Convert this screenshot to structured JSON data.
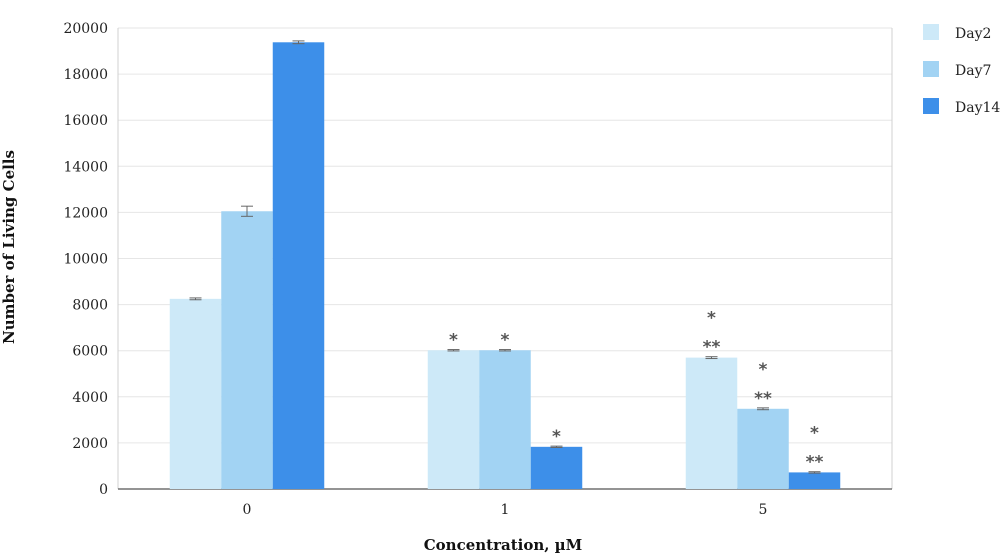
{
  "chart_data": {
    "type": "bar",
    "title": "",
    "xlabel": "Concentration, µM",
    "ylabel": "Number of Living Cells",
    "categories": [
      "0",
      "1",
      "5"
    ],
    "ylim": [
      0,
      20000
    ],
    "yticks": [
      0,
      2000,
      4000,
      6000,
      8000,
      10000,
      12000,
      14000,
      16000,
      18000,
      20000
    ],
    "grid": true,
    "legend_position": "right",
    "series": [
      {
        "name": "Day2",
        "color": "#cde9f8",
        "values": [
          8250,
          6020,
          5700
        ],
        "errors": [
          40,
          30,
          40
        ],
        "annotations": [
          "",
          "*",
          "*\n**"
        ]
      },
      {
        "name": "Day7",
        "color": "#a2d3f3",
        "values": [
          12050,
          6020,
          3480
        ],
        "errors": [
          220,
          30,
          40
        ],
        "annotations": [
          "",
          "*",
          "*\n**"
        ]
      },
      {
        "name": "Day14",
        "color": "#3d8fe9",
        "values": [
          19380,
          1830,
          720
        ],
        "errors": [
          60,
          30,
          30
        ],
        "annotations": [
          "",
          "*",
          "*\n**"
        ]
      }
    ]
  }
}
